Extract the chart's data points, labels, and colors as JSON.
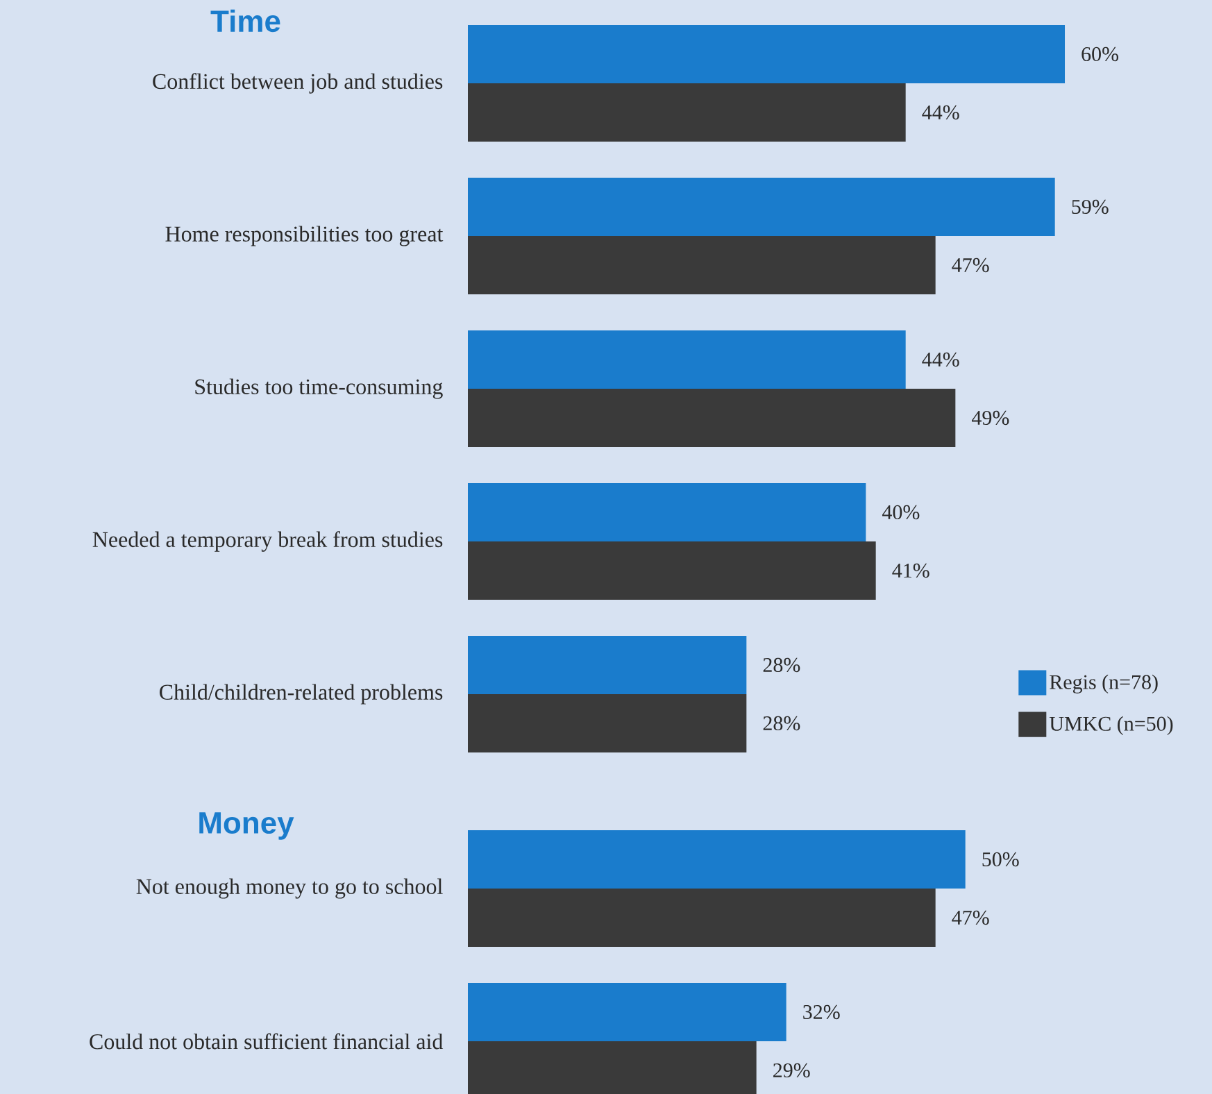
{
  "chart_data": [
    {
      "type": "bar",
      "orientation": "horizontal",
      "title": "Time",
      "legend": "bottom right",
      "categories": [
        "Conflict between job and studies",
        "Home responsibilities too great",
        "Studies too time-consuming",
        "Needed a temporary break from studies",
        "Child/children-related problems"
      ],
      "series": [
        {
          "name": "Regis (n=78)",
          "color": "#1a7ccc",
          "values": [
            60,
            59,
            44,
            40,
            28
          ],
          "value_labels": [
            "60%",
            "59%",
            "44%",
            "40%",
            "28%"
          ]
        },
        {
          "name": "UMKC (n=50)",
          "color": "#3a3a3a",
          "values": [
            44,
            47,
            49,
            41,
            28
          ],
          "value_labels": [
            "44%",
            "47%",
            "49%",
            "41%",
            "28%"
          ]
        }
      ]
    },
    {
      "type": "bar",
      "orientation": "horizontal",
      "title": "Money",
      "categories": [
        "Not enough money to go to school",
        "Could not obtain sufficient financial aid"
      ],
      "series": [
        {
          "color": "#1a7ccc",
          "values": [
            50,
            32
          ],
          "value_labels": [
            "50%",
            "32%"
          ]
        },
        {
          "color": "#3a3a3a",
          "values": [
            47,
            29
          ],
          "value_labels": [
            "47%",
            "29%"
          ]
        }
      ]
    }
  ]
}
